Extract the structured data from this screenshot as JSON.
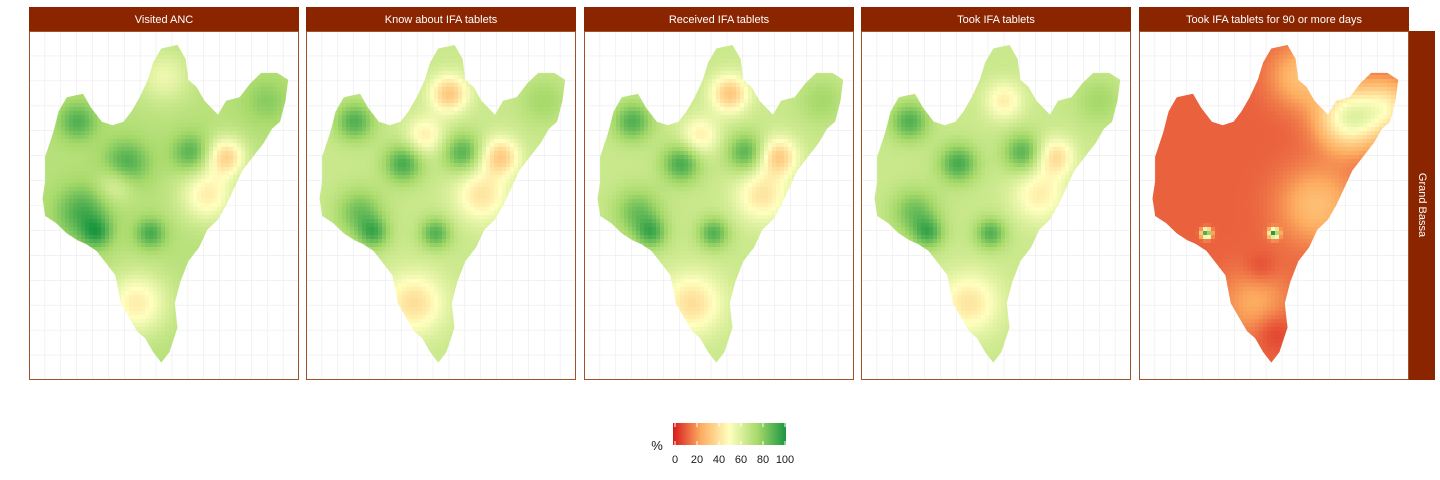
{
  "chart_data": {
    "type": "heatmap",
    "facet_row": "Grand Bassa",
    "panels": [
      {
        "title": "Visited ANC",
        "base": 70,
        "hotspots": [
          {
            "x": 0.2,
            "y": 0.52,
            "r": 0.07,
            "v": 92
          },
          {
            "x": 0.36,
            "y": 0.38,
            "r": 0.06,
            "v": 92
          },
          {
            "x": 0.6,
            "y": 0.35,
            "r": 0.05,
            "v": 90
          },
          {
            "x": 0.45,
            "y": 0.58,
            "r": 0.04,
            "v": 92
          },
          {
            "x": 0.25,
            "y": 0.58,
            "r": 0.04,
            "v": 90
          },
          {
            "x": 0.18,
            "y": 0.26,
            "r": 0.05,
            "v": 90
          },
          {
            "x": 0.73,
            "y": 0.36,
            "r": 0.05,
            "v": 38
          },
          {
            "x": 0.66,
            "y": 0.47,
            "r": 0.07,
            "v": 45
          },
          {
            "x": 0.4,
            "y": 0.78,
            "r": 0.08,
            "v": 45
          },
          {
            "x": 0.5,
            "y": 0.13,
            "r": 0.07,
            "v": 55
          },
          {
            "x": 0.88,
            "y": 0.2,
            "r": 0.06,
            "v": 80
          },
          {
            "x": 0.32,
            "y": 0.44,
            "r": 0.05,
            "v": 55
          }
        ]
      },
      {
        "title": "Know about IFA tablets",
        "base": 65,
        "hotspots": [
          {
            "x": 0.2,
            "y": 0.52,
            "r": 0.06,
            "v": 85
          },
          {
            "x": 0.36,
            "y": 0.38,
            "r": 0.05,
            "v": 92
          },
          {
            "x": 0.58,
            "y": 0.35,
            "r": 0.05,
            "v": 90
          },
          {
            "x": 0.48,
            "y": 0.58,
            "r": 0.04,
            "v": 90
          },
          {
            "x": 0.25,
            "y": 0.58,
            "r": 0.04,
            "v": 88
          },
          {
            "x": 0.18,
            "y": 0.26,
            "r": 0.05,
            "v": 90
          },
          {
            "x": 0.72,
            "y": 0.36,
            "r": 0.05,
            "v": 35
          },
          {
            "x": 0.65,
            "y": 0.47,
            "r": 0.07,
            "v": 42
          },
          {
            "x": 0.4,
            "y": 0.78,
            "r": 0.08,
            "v": 40
          },
          {
            "x": 0.53,
            "y": 0.18,
            "r": 0.05,
            "v": 33
          },
          {
            "x": 0.44,
            "y": 0.3,
            "r": 0.05,
            "v": 45
          },
          {
            "x": 0.88,
            "y": 0.2,
            "r": 0.06,
            "v": 75
          }
        ]
      },
      {
        "title": "Received IFA tablets",
        "base": 65,
        "hotspots": [
          {
            "x": 0.2,
            "y": 0.52,
            "r": 0.06,
            "v": 85
          },
          {
            "x": 0.36,
            "y": 0.38,
            "r": 0.05,
            "v": 92
          },
          {
            "x": 0.6,
            "y": 0.35,
            "r": 0.05,
            "v": 90
          },
          {
            "x": 0.48,
            "y": 0.58,
            "r": 0.04,
            "v": 90
          },
          {
            "x": 0.25,
            "y": 0.58,
            "r": 0.04,
            "v": 88
          },
          {
            "x": 0.18,
            "y": 0.26,
            "r": 0.05,
            "v": 90
          },
          {
            "x": 0.72,
            "y": 0.36,
            "r": 0.05,
            "v": 35
          },
          {
            "x": 0.66,
            "y": 0.47,
            "r": 0.07,
            "v": 42
          },
          {
            "x": 0.4,
            "y": 0.78,
            "r": 0.08,
            "v": 40
          },
          {
            "x": 0.54,
            "y": 0.18,
            "r": 0.05,
            "v": 33
          },
          {
            "x": 0.43,
            "y": 0.3,
            "r": 0.05,
            "v": 45
          },
          {
            "x": 0.88,
            "y": 0.2,
            "r": 0.06,
            "v": 75
          }
        ]
      },
      {
        "title": "Took IFA tablets",
        "base": 65,
        "hotspots": [
          {
            "x": 0.2,
            "y": 0.52,
            "r": 0.06,
            "v": 85
          },
          {
            "x": 0.36,
            "y": 0.38,
            "r": 0.05,
            "v": 92
          },
          {
            "x": 0.6,
            "y": 0.35,
            "r": 0.05,
            "v": 90
          },
          {
            "x": 0.48,
            "y": 0.58,
            "r": 0.04,
            "v": 90
          },
          {
            "x": 0.25,
            "y": 0.58,
            "r": 0.04,
            "v": 88
          },
          {
            "x": 0.18,
            "y": 0.26,
            "r": 0.05,
            "v": 90
          },
          {
            "x": 0.72,
            "y": 0.36,
            "r": 0.05,
            "v": 40
          },
          {
            "x": 0.66,
            "y": 0.47,
            "r": 0.07,
            "v": 45
          },
          {
            "x": 0.4,
            "y": 0.78,
            "r": 0.08,
            "v": 42
          },
          {
            "x": 0.53,
            "y": 0.2,
            "r": 0.05,
            "v": 45
          },
          {
            "x": 0.88,
            "y": 0.2,
            "r": 0.06,
            "v": 75
          }
        ]
      },
      {
        "title": "Took IFA tablets for 90 or more days",
        "base": 12,
        "hotspots": [
          {
            "x": 0.78,
            "y": 0.25,
            "r": 0.08,
            "v": 55
          },
          {
            "x": 0.92,
            "y": 0.22,
            "r": 0.07,
            "v": 40
          },
          {
            "x": 0.6,
            "y": 0.13,
            "r": 0.08,
            "v": 30
          },
          {
            "x": 0.25,
            "y": 0.58,
            "r": 0.012,
            "v": 100
          },
          {
            "x": 0.5,
            "y": 0.58,
            "r": 0.012,
            "v": 100
          },
          {
            "x": 0.66,
            "y": 0.5,
            "r": 0.1,
            "v": 30
          },
          {
            "x": 0.43,
            "y": 0.78,
            "r": 0.09,
            "v": 25
          },
          {
            "x": 0.5,
            "y": 0.86,
            "r": 0.05,
            "v": 4
          },
          {
            "x": 0.45,
            "y": 0.68,
            "r": 0.04,
            "v": 6
          }
        ]
      }
    ],
    "legend": {
      "title": "%",
      "ticks": [
        0,
        20,
        40,
        60,
        80,
        100
      ],
      "colors": [
        "#d7191c",
        "#fdae61",
        "#ffffbf",
        "#a6d96a",
        "#1a9641"
      ],
      "placement": "bottom"
    },
    "range": [
      0,
      100
    ],
    "strip_fill": "#8b2500",
    "panel_border": "#a0522d",
    "grid": true
  }
}
